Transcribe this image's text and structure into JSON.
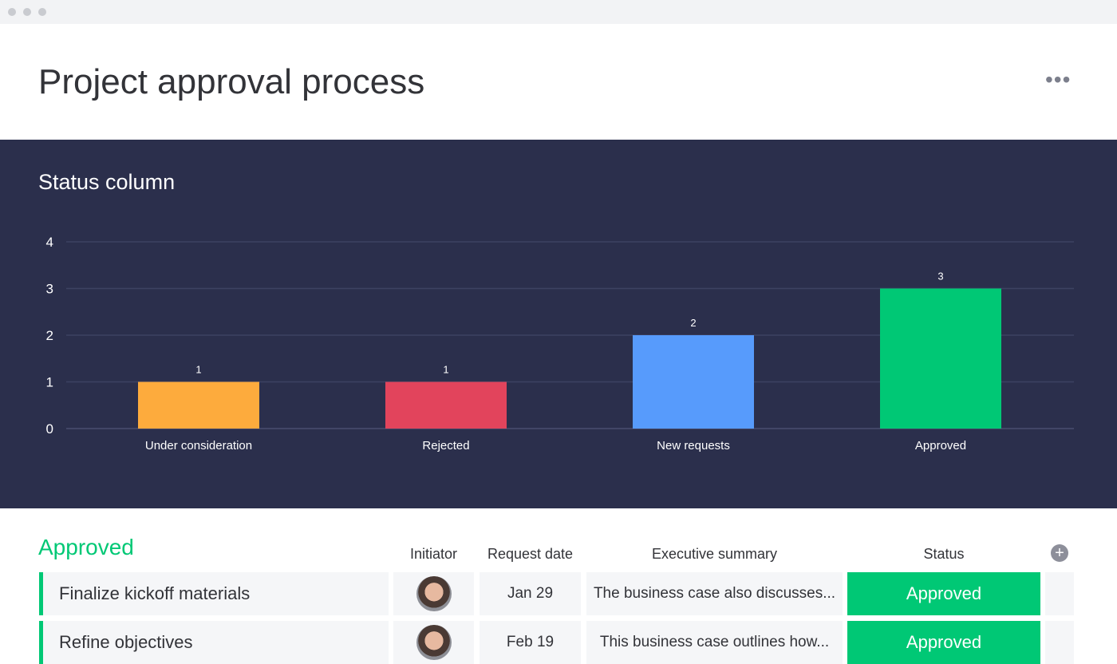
{
  "header": {
    "title": "Project approval process",
    "more_icon": "ellipsis-icon"
  },
  "chart_data": {
    "type": "bar",
    "title": "Status column",
    "categories": [
      "Under consideration",
      "Rejected",
      "New requests",
      "Approved"
    ],
    "values": [
      1,
      1,
      2,
      3
    ],
    "colors": [
      "#fdab3d",
      "#e2445c",
      "#579bfc",
      "#00c875"
    ],
    "ylim": [
      0,
      4
    ],
    "yticks": [
      0,
      1,
      2,
      3,
      4
    ],
    "grid": true
  },
  "table": {
    "group": "Approved",
    "columns": [
      "Initiator",
      "Request date",
      "Executive summary",
      "Status"
    ],
    "rows": [
      {
        "name": "Finalize kickoff materials",
        "date": "Jan 29",
        "summary": "The business case also discusses...",
        "status": "Approved"
      },
      {
        "name": "Refine objectives",
        "date": "Feb 19",
        "summary": "This business case outlines how...",
        "status": "Approved"
      }
    ]
  }
}
